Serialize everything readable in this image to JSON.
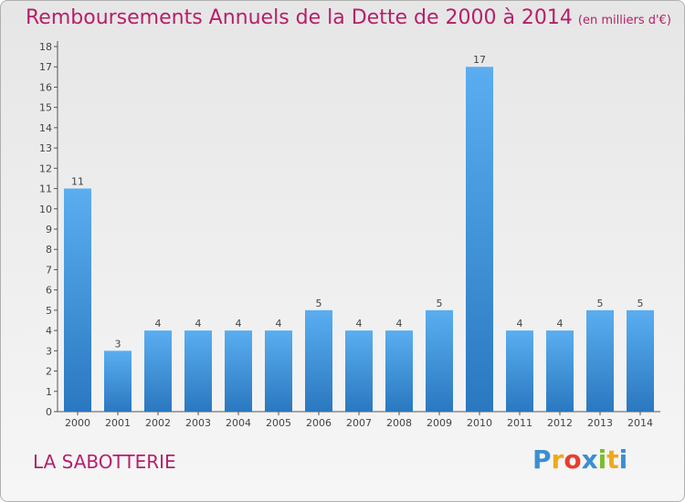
{
  "chart_data": {
    "type": "bar",
    "title": "Remboursements Annuels de la Dette de 2000 à 2014",
    "subtitle": "(en milliers d'€)",
    "categories": [
      "2000",
      "2001",
      "2002",
      "2003",
      "2004",
      "2005",
      "2006",
      "2007",
      "2008",
      "2009",
      "2010",
      "2011",
      "2012",
      "2013",
      "2014"
    ],
    "values": [
      11,
      3,
      4,
      4,
      4,
      4,
      5,
      4,
      4,
      5,
      17,
      4,
      4,
      5,
      5
    ],
    "ylim": [
      0,
      18
    ],
    "yticks": [
      0,
      1,
      2,
      3,
      4,
      5,
      6,
      7,
      8,
      9,
      10,
      11,
      12,
      13,
      14,
      15,
      16,
      17,
      18
    ],
    "grid": false,
    "bar_color": "#3a8fd8"
  },
  "commune": "LA SABOTTERIE",
  "logo": {
    "letters": [
      "P",
      "r",
      "o",
      "x",
      "i",
      "t",
      "i"
    ],
    "colors": [
      "#3b8fd3",
      "#f0a81c",
      "#e83e2e",
      "#3b8fd3",
      "#7cbc2b",
      "#f0a81c",
      "#3b8fd3"
    ]
  }
}
